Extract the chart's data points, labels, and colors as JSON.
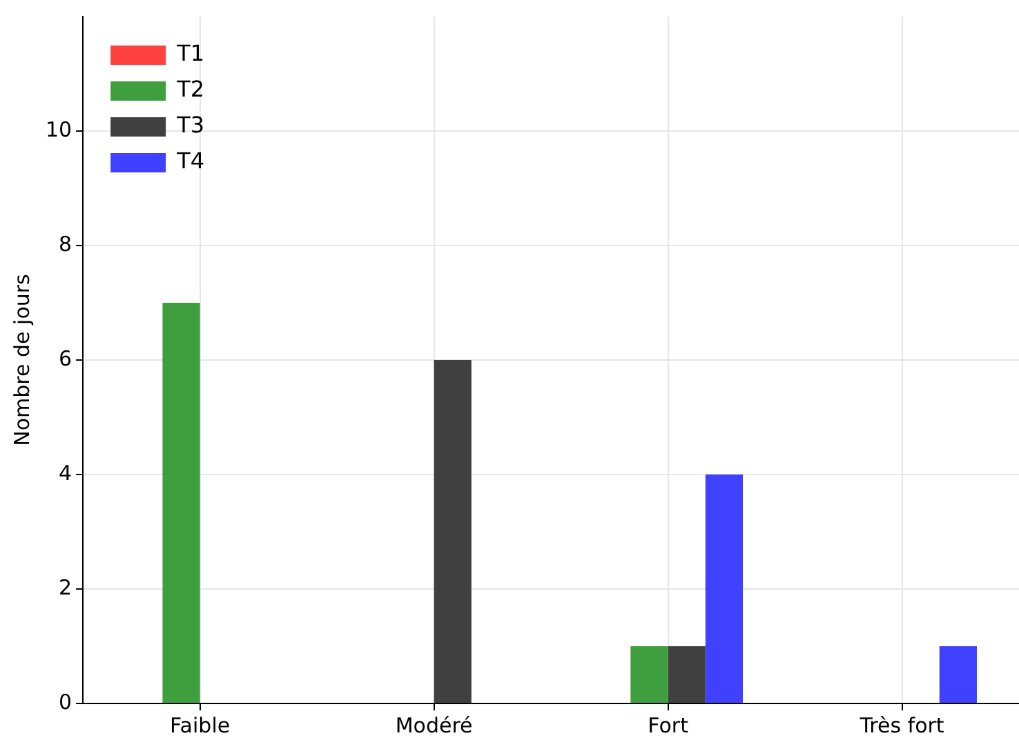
{
  "chart_data": {
    "type": "bar",
    "ylabel": "Nombre de jours",
    "categories": [
      "Faible",
      "Modéré",
      "Fort",
      "Très fort"
    ],
    "series": [
      {
        "name": "T1",
        "color": "#ff4040",
        "values": [
          0,
          0,
          0,
          0
        ]
      },
      {
        "name": "T2",
        "color": "#3f9f3f",
        "values": [
          7,
          0,
          1,
          0
        ]
      },
      {
        "name": "T3",
        "color": "#404040",
        "values": [
          0,
          6,
          1,
          0
        ]
      },
      {
        "name": "T4",
        "color": "#4040ff",
        "values": [
          0,
          0,
          4,
          1
        ]
      }
    ],
    "ylim": [
      0,
      12
    ],
    "yticks": [
      0,
      2,
      4,
      6,
      8,
      10
    ],
    "grid": true,
    "legend": "top left"
  }
}
